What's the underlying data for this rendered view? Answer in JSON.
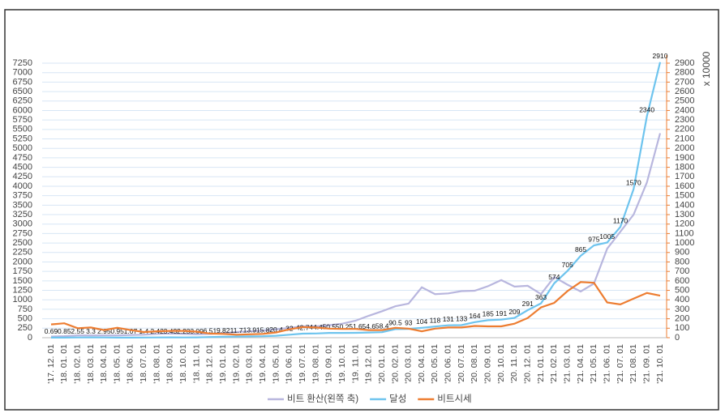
{
  "chart_data": {
    "type": "line",
    "categories": [
      "'17. 12. 01",
      "'18. 01. 01",
      "'18. 02. 01",
      "'18. 03. 01",
      "'18. 04. 01",
      "'18. 05. 01",
      "'18. 06. 01",
      "'18. 07. 01",
      "'18. 08. 01",
      "'18. 09. 01",
      "'18. 10. 01",
      "'18. 11. 01",
      "'18. 12. 01",
      "'19. 01. 01",
      "'19. 02. 01",
      "'19. 03. 01",
      "'19. 04. 01",
      "'19. 05. 01",
      "'19. 06. 01",
      "'19. 07. 01",
      "'19. 08. 01",
      "'19. 09. 01",
      "'19. 10. 01",
      "'19. 11. 01",
      "'19. 12. 01",
      "'20. 01. 01",
      "'20. 02. 01",
      "'20. 03. 01",
      "'20. 04. 01",
      "'20. 05. 01",
      "'20. 06. 01",
      "'20. 07. 01",
      "'20. 08. 01",
      "'20. 09. 01",
      "'20. 10. 01",
      "'20. 11. 01",
      "'20. 12. 01",
      "'21. 01. 01",
      "'21. 02. 01",
      "'21. 03. 01",
      "'21. 04. 01",
      "'21. 05. 01",
      "'21. 06. 01",
      "'21. 07. 01",
      "'21. 08. 01",
      "'21. 09. 01",
      "'21. 10. 01"
    ],
    "series": [
      {
        "name": "비트 환산(왼쪽 축)",
        "color": "#b8b6de",
        "axis": "y",
        "values": [
          30,
          40,
          60,
          60,
          60,
          60,
          70,
          80,
          100,
          110,
          100,
          90,
          100,
          120,
          150,
          170,
          190,
          220,
          260,
          300,
          300,
          330,
          370,
          450,
          580,
          700,
          830,
          900,
          1330,
          1150,
          1170,
          1230,
          1240,
          1360,
          1520,
          1350,
          1370,
          1150,
          1600,
          1400,
          1220,
          1430,
          2350,
          2800,
          3250,
          4100,
          5400
        ]
      },
      {
        "name": "달성",
        "color": "#6ec4ee",
        "axis": "y2",
        "data_labels": true,
        "values": [
          0.69,
          0.85,
          2.55,
          3.3,
          2.95,
          0.95,
          1.07,
          1.4,
          2.42,
          3.43,
          2.23,
          3.09,
          6.51,
          9.82,
          11.7,
          13.9,
          15.8,
          20.4,
          32,
          42.7,
          44.4,
          50.5,
          50.2,
          51.6,
          54.6,
          58.4,
          90.5,
          93,
          104,
          118,
          131,
          133,
          164,
          185,
          191,
          209,
          291,
          363,
          574,
          705,
          865,
          975,
          1005,
          1170,
          1570,
          2340,
          2910
        ]
      },
      {
        "name": "비트시세",
        "color": "#ed7d31",
        "axis": "y2",
        "values": [
          140,
          152,
          100,
          108,
          80,
          104,
          80,
          60,
          68,
          72,
          72,
          64,
          44,
          40,
          32,
          36,
          40,
          56,
          88,
          112,
          108,
          96,
          92,
          92,
          80,
          80,
          104,
          96,
          68,
          96,
          108,
          108,
          124,
          120,
          120,
          148,
          208,
          320,
          368,
          492,
          588,
          580,
          372,
          352,
          412,
          472,
          444
        ]
      }
    ],
    "ylim": [
      0,
      7250
    ],
    "yticks": [
      0,
      250,
      500,
      750,
      1000,
      1250,
      1500,
      1750,
      2000,
      2250,
      2500,
      2750,
      3000,
      3250,
      3500,
      3750,
      4000,
      4250,
      4500,
      4750,
      5000,
      5250,
      5500,
      5750,
      6000,
      6250,
      6500,
      6750,
      7000,
      7250
    ],
    "y2lim": [
      0,
      2900
    ],
    "y2ticks": [
      0,
      100,
      200,
      300,
      400,
      500,
      600,
      700,
      800,
      900,
      1000,
      1100,
      1200,
      1300,
      1400,
      1500,
      1600,
      1700,
      1800,
      1900,
      2000,
      2100,
      2200,
      2300,
      2400,
      2500,
      2600,
      2700,
      2800,
      2900
    ],
    "y2label": "x 10000",
    "grid": true,
    "legend": "bottom"
  }
}
